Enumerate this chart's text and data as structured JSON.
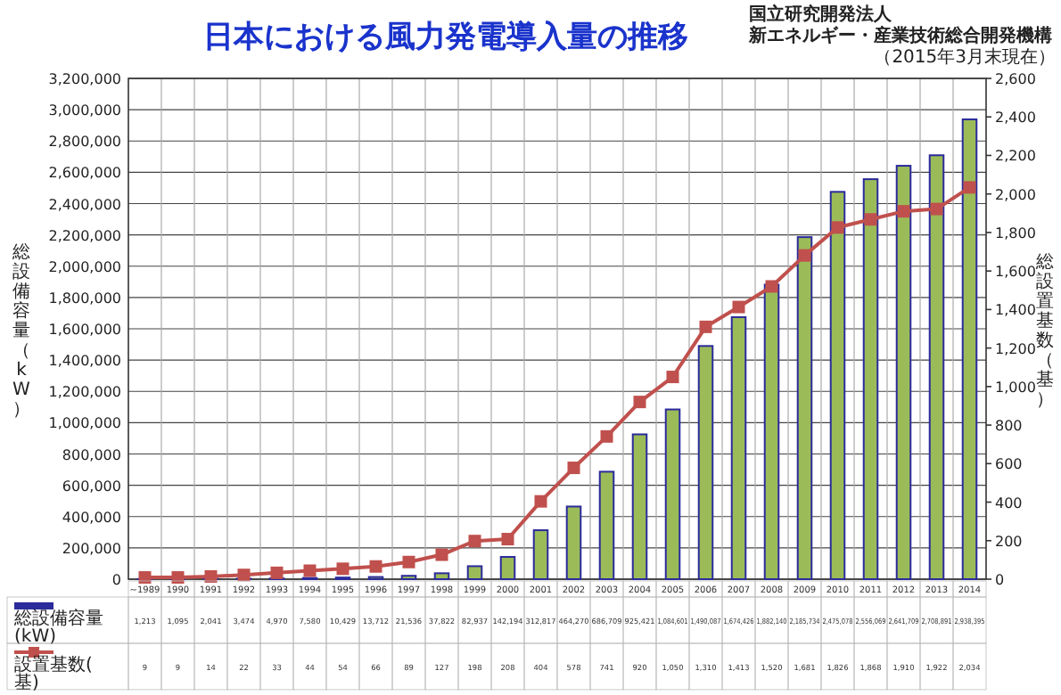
{
  "chart_data": {
    "type": "bar",
    "title": "日本における風力発電導入量の推移",
    "annotations": [
      "国立研究開発法人",
      "新エネルギー・産業技術総合開発機構",
      "（2015年3月末現在）"
    ],
    "ylabel": "総設備容量（kW）",
    "y2label": "総設置基数（基）",
    "categories": [
      "~1989",
      "1990",
      "1991",
      "1992",
      "1993",
      "1994",
      "1995",
      "1996",
      "1997",
      "1998",
      "1999",
      "2000",
      "2001",
      "2002",
      "2003",
      "2004",
      "2005",
      "2006",
      "2007",
      "2008",
      "2009",
      "2010",
      "2011",
      "2012",
      "2013",
      "2014"
    ],
    "series": [
      {
        "name": "総設備容量(kW)",
        "color": "#9bbb59",
        "values": [
          1213,
          1095,
          2041,
          3474,
          4970,
          7580,
          10429,
          13712,
          21536,
          37822,
          82937,
          142194,
          312817,
          464270,
          686709,
          925421,
          1084601,
          1490087,
          1674426,
          1882140,
          2185734,
          2475078,
          2556069,
          2641709,
          2708891,
          2938395
        ],
        "value_labels": [
          "1,213",
          "1,095",
          "2,041",
          "3,474",
          "4,970",
          "7,580",
          "10,429",
          "13,712",
          "21,536",
          "37,822",
          "82,937",
          "142,194",
          "312,817",
          "464,270",
          "686,709",
          "925,421",
          "1,084,601",
          "1,490,087",
          "1,674,426",
          "1,882,140",
          "2,185,734",
          "2,475,078",
          "2,556,069",
          "2,641,709",
          "2,708,891",
          "2,938,395"
        ]
      },
      {
        "name": "設置基数(基)",
        "type": "line",
        "axis": "y2",
        "marker": "square",
        "color": "#c0504d",
        "values": [
          9,
          9,
          14,
          22,
          33,
          44,
          54,
          66,
          89,
          127,
          198,
          208,
          404,
          578,
          741,
          920,
          1050,
          1310,
          1413,
          1520,
          1681,
          1826,
          1868,
          1910,
          1922,
          2034
        ],
        "value_labels": [
          "9",
          "9",
          "14",
          "22",
          "33",
          "44",
          "54",
          "66",
          "89",
          "127",
          "198",
          "208",
          "404",
          "578",
          "741",
          "920",
          "1,050",
          "1,310",
          "1,413",
          "1,520",
          "1,681",
          "1,826",
          "1,868",
          "1,910",
          "1,922",
          "2,034"
        ]
      }
    ],
    "ylim": [
      0,
      3200000
    ],
    "yticks": [
      0,
      {
        "value": 200000,
        "label": "200,000"
      },
      {
        "value": 400000,
        "label": "400,000"
      },
      {
        "value": 600000,
        "label": "600,000"
      },
      {
        "value": 800000,
        "label": "800,000"
      },
      {
        "value": 1000000,
        "label": "1,000,000"
      },
      {
        "value": 1200000,
        "label": "1,200,000"
      },
      {
        "value": 1400000,
        "label": "1,400,000"
      },
      {
        "value": 1600000,
        "label": "1,600,000"
      },
      {
        "value": 1800000,
        "label": "1,800,000"
      },
      {
        "value": 2000000,
        "label": "2,000,000"
      },
      {
        "value": 2200000,
        "label": "2,200,000"
      },
      {
        "value": 2400000,
        "label": "2,400,000"
      },
      {
        "value": 2600000,
        "label": "2,600,000"
      },
      {
        "value": 2800000,
        "label": "2,800,000"
      },
      {
        "value": 3000000,
        "label": "3,000,000"
      },
      {
        "value": 3200000,
        "label": "3,200,000"
      }
    ],
    "y2lim": [
      0,
      2600
    ],
    "y2ticks": [
      0,
      200,
      400,
      600,
      800,
      {
        "value": 1000,
        "label": "1,000"
      },
      {
        "value": 1200,
        "label": "1,200"
      },
      {
        "value": 1400,
        "label": "1,400"
      },
      {
        "value": 1600,
        "label": "1,600"
      },
      {
        "value": 1800,
        "label": "1,800"
      },
      {
        "value": 2000,
        "label": "2,000"
      },
      {
        "value": 2200,
        "label": "2,200"
      },
      {
        "value": 2400,
        "label": "2,400"
      },
      {
        "value": 2600,
        "label": "2,600"
      }
    ],
    "grid": true,
    "legend": "bottom left"
  }
}
